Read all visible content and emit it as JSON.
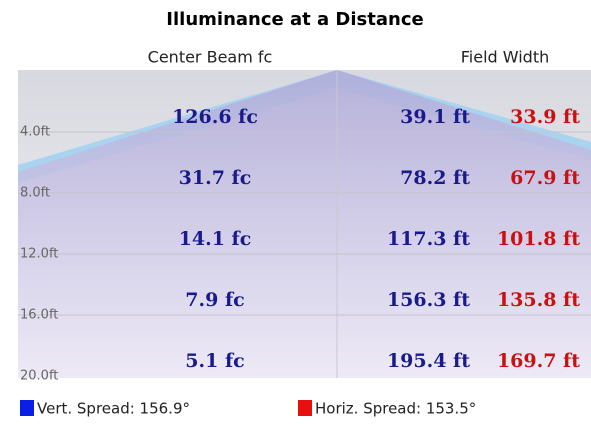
{
  "title": "Illuminance at a Distance",
  "headers": {
    "center": "Center Beam fc",
    "field": "Field Width"
  },
  "rows": [
    {
      "distance": "4.0ft",
      "center": "126.6 fc",
      "vert": "39.1 ft",
      "horiz": "33.9 ft"
    },
    {
      "distance": "8.0ft",
      "center": "31.7 fc",
      "vert": "78.2 ft",
      "horiz": "67.9 ft"
    },
    {
      "distance": "12.0ft",
      "center": "14.1 fc",
      "vert": "117.3 ft",
      "horiz": "101.8 ft"
    },
    {
      "distance": "16.0ft",
      "center": "7.9 fc",
      "vert": "156.3 ft",
      "horiz": "135.8 ft"
    },
    {
      "distance": "20.0ft",
      "center": "5.1 fc",
      "vert": "195.4 ft",
      "horiz": "169.7 ft"
    }
  ],
  "legend": [
    {
      "label": "Vert. Spread: 156.9°",
      "color": "#0a1ee6"
    },
    {
      "label": "Horiz. Spread: 153.5°",
      "color": "#e61010"
    }
  ]
}
